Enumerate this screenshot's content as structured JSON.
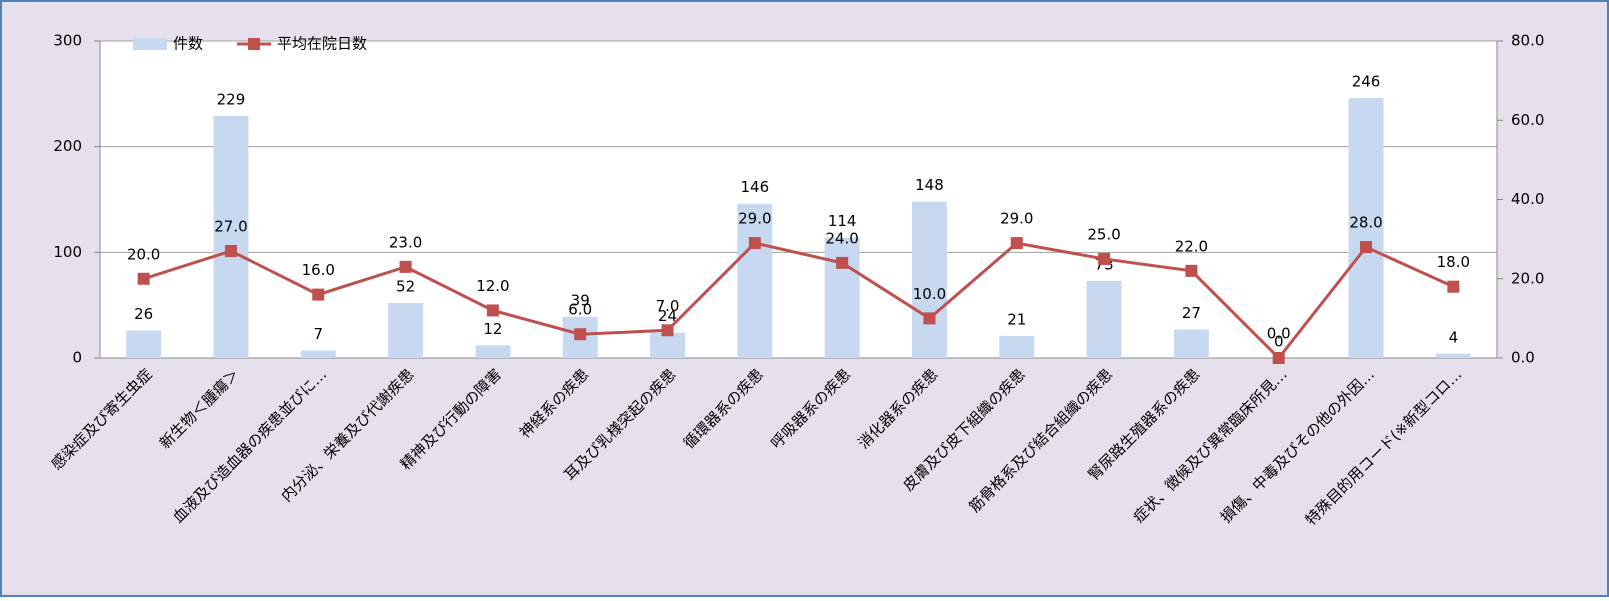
{
  "chart_data": {
    "type": "bar-line",
    "categories": [
      "感染症及び寄生虫症",
      "新生物＜腫瘍＞",
      "血液及び造血器の疾患並びに…",
      "内分泌、栄養及び代謝疾患",
      "精神及び行動の障害",
      "神経系の疾患",
      "耳及び乳様突起の疾患",
      "循環器系の疾患",
      "呼吸器系の疾患",
      "消化器系の疾患",
      "皮膚及び皮下組織の疾患",
      "筋骨格系及び結合組織の疾患",
      "腎尿路生殖器系の疾患",
      "症状、徴候及び異常臨床所見…",
      "損傷、中毒及びその他の外因…",
      "特殊目的用コード(※新型コロ…"
    ],
    "series": [
      {
        "name": "件数",
        "color": "#c6d9f1",
        "kind": "bar",
        "values": [
          26,
          229,
          7,
          52,
          12,
          39,
          24,
          146,
          114,
          148,
          21,
          73,
          27,
          0,
          246,
          4
        ]
      },
      {
        "name": "平均在院日数",
        "color": "#c0504d",
        "kind": "line",
        "axis": "y2",
        "values": [
          20,
          27,
          16,
          23,
          12,
          6,
          7,
          29,
          24,
          10,
          29,
          25,
          22,
          0,
          28,
          18
        ],
        "value_labels": [
          "20.0",
          "27.0",
          "16.0",
          "23.0",
          "12.0",
          "6.0",
          "7.0",
          "29.0",
          "24.0",
          "10.0",
          "29.0",
          "25.0",
          "22.0",
          "0.0",
          "28.0",
          "18.0"
        ]
      }
    ],
    "ylim": [
      0,
      300
    ],
    "yticks": [
      0,
      100,
      200,
      300
    ],
    "y2lim": [
      0,
      80
    ],
    "y2ticks": [
      {
        "value": 0,
        "label": "0.0"
      },
      {
        "value": 20,
        "label": "20.0"
      },
      {
        "value": 40,
        "label": "40.0"
      },
      {
        "value": 60,
        "label": "60.0"
      },
      {
        "value": 80,
        "label": "80.0"
      }
    ],
    "grid": true,
    "legend": "top-left"
  }
}
